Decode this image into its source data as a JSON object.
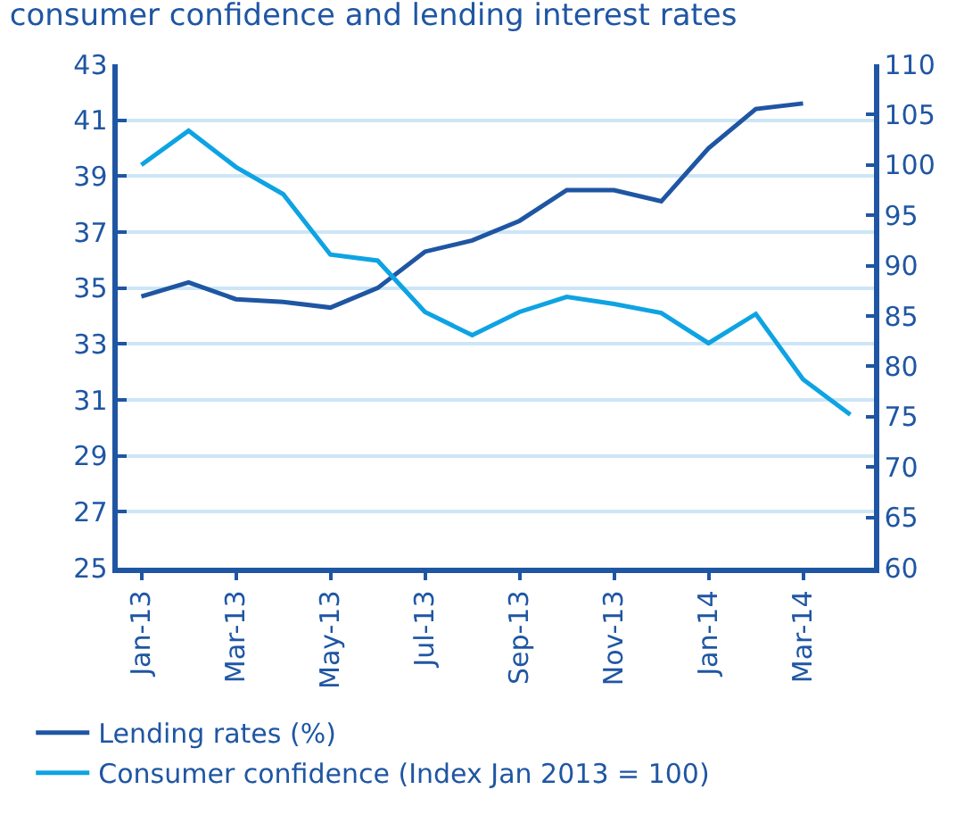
{
  "chart_data": {
    "type": "line",
    "title": "consumer confidence and lending interest rates",
    "categories": [
      "Jan-13",
      null,
      "Mar-13",
      null,
      "May-13",
      null,
      "Jul-13",
      null,
      "Sep-13",
      null,
      "Nov-13",
      null,
      "Jan-14",
      null,
      "Mar-14",
      null
    ],
    "series": [
      {
        "name": "Lending rates (%)",
        "color": "#1f56a3",
        "values": [
          34.7,
          35.2,
          34.6,
          34.5,
          34.3,
          35.0,
          36.3,
          36.7,
          37.4,
          38.5,
          38.5,
          38.1,
          40.0,
          41.4,
          41.6,
          null
        ]
      },
      {
        "name": "Consumer confidence (Index Jan 2013 = 100)",
        "color": "#0ea3e3",
        "axis": "y2",
        "values": [
          100.0,
          103.4,
          99.8,
          97.1,
          91.1,
          90.5,
          85.4,
          83.1,
          85.4,
          86.9,
          86.2,
          85.3,
          82.3,
          85.2,
          78.7,
          75.2
        ]
      }
    ],
    "ylim": [
      25,
      43
    ],
    "yticks": [
      25,
      27,
      29,
      31,
      33,
      35,
      37,
      39,
      41,
      43
    ],
    "y2lim": [
      60,
      110
    ],
    "y2ticks": [
      60,
      65,
      70,
      75,
      80,
      85,
      90,
      95,
      100,
      105,
      110
    ],
    "grid": "y",
    "legend": "bottom",
    "marker": "none",
    "line_style": "solid"
  }
}
